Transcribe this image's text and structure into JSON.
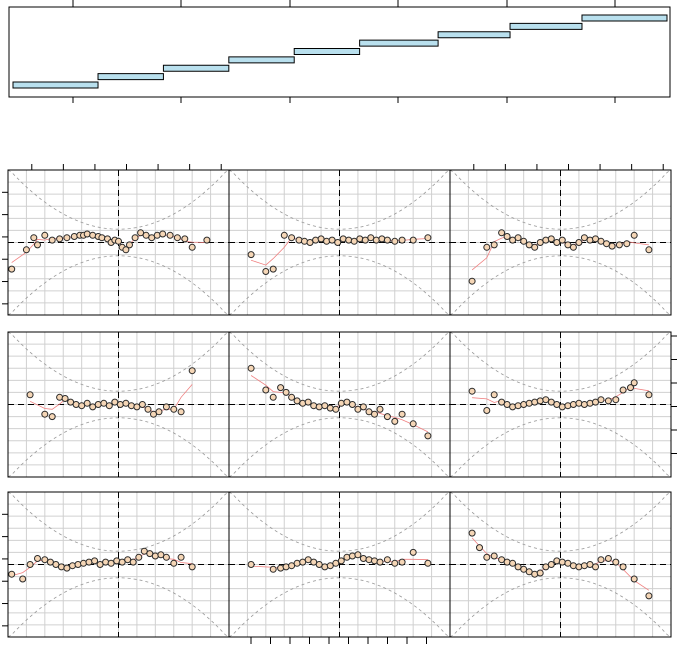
{
  "chart_data": {
    "type": "scatter",
    "layout": {
      "rows": 3,
      "cols": 3
    },
    "grid": true,
    "reference_lines": {
      "horizontal": 0,
      "vertical": 0,
      "style": "dashed"
    },
    "interval_strip": {
      "type": "bar",
      "intervals": [
        [
          0.0,
          0.13
        ],
        [
          0.13,
          0.23
        ],
        [
          0.23,
          0.33
        ],
        [
          0.33,
          0.43
        ],
        [
          0.43,
          0.53
        ],
        [
          0.53,
          0.65
        ],
        [
          0.65,
          0.76
        ],
        [
          0.76,
          0.87
        ],
        [
          0.87,
          1.0
        ]
      ]
    },
    "panels": [
      {
        "points": [
          [
            -2.9,
            -1.1
          ],
          [
            -2.5,
            -0.3
          ],
          [
            -2.3,
            0.2
          ],
          [
            -2.2,
            -0.1
          ],
          [
            -2.0,
            0.3
          ],
          [
            -1.8,
            0.1
          ],
          [
            -1.6,
            0.15
          ],
          [
            -1.4,
            0.2
          ],
          [
            -1.2,
            0.25
          ],
          [
            -1.05,
            0.3
          ],
          [
            -0.95,
            0.3
          ],
          [
            -0.85,
            0.35
          ],
          [
            -0.7,
            0.3
          ],
          [
            -0.55,
            0.25
          ],
          [
            -0.45,
            0.2
          ],
          [
            -0.3,
            0.15
          ],
          [
            -0.2,
            0.0
          ],
          [
            -0.1,
            0.1
          ],
          [
            0.0,
            0.05
          ],
          [
            0.1,
            -0.2
          ],
          [
            0.2,
            -0.3
          ],
          [
            0.3,
            -0.1
          ],
          [
            0.45,
            0.2
          ],
          [
            0.6,
            0.4
          ],
          [
            0.75,
            0.3
          ],
          [
            0.9,
            0.2
          ],
          [
            1.05,
            0.3
          ],
          [
            1.2,
            0.35
          ],
          [
            1.4,
            0.3
          ],
          [
            1.6,
            0.2
          ],
          [
            1.8,
            0.15
          ],
          [
            2.0,
            -0.2
          ],
          [
            2.4,
            0.1
          ]
        ]
      },
      {
        "points": [
          [
            -2.4,
            -0.5
          ],
          [
            -2.0,
            -1.2
          ],
          [
            -1.8,
            -1.1
          ],
          [
            -1.5,
            0.3
          ],
          [
            -1.3,
            0.2
          ],
          [
            -1.1,
            0.1
          ],
          [
            -0.95,
            0.05
          ],
          [
            -0.8,
            0.0
          ],
          [
            -0.65,
            0.1
          ],
          [
            -0.5,
            0.15
          ],
          [
            -0.35,
            0.05
          ],
          [
            -0.2,
            0.1
          ],
          [
            -0.05,
            0.0
          ],
          [
            0.1,
            0.15
          ],
          [
            0.25,
            0.1
          ],
          [
            0.4,
            0.05
          ],
          [
            0.55,
            0.15
          ],
          [
            0.7,
            0.1
          ],
          [
            0.85,
            0.2
          ],
          [
            1.0,
            0.1
          ],
          [
            1.15,
            0.15
          ],
          [
            1.3,
            0.1
          ],
          [
            1.5,
            0.05
          ],
          [
            1.7,
            0.1
          ],
          [
            2.0,
            0.1
          ],
          [
            2.4,
            0.2
          ]
        ]
      },
      {
        "points": [
          [
            -2.4,
            -1.6
          ],
          [
            -2.0,
            -0.2
          ],
          [
            -1.8,
            -0.1
          ],
          [
            -1.6,
            0.4
          ],
          [
            -1.45,
            0.25
          ],
          [
            -1.3,
            0.1
          ],
          [
            -1.15,
            0.2
          ],
          [
            -1.0,
            0.05
          ],
          [
            -0.85,
            -0.1
          ],
          [
            -0.7,
            -0.2
          ],
          [
            -0.55,
            0.0
          ],
          [
            -0.4,
            0.1
          ],
          [
            -0.25,
            0.15
          ],
          [
            -0.1,
            0.0
          ],
          [
            0.05,
            0.1
          ],
          [
            0.2,
            -0.1
          ],
          [
            0.35,
            -0.2
          ],
          [
            0.5,
            0.0
          ],
          [
            0.65,
            0.2
          ],
          [
            0.8,
            0.1
          ],
          [
            0.95,
            0.15
          ],
          [
            1.1,
            0.05
          ],
          [
            1.25,
            -0.05
          ],
          [
            1.4,
            -0.15
          ],
          [
            1.6,
            -0.1
          ],
          [
            1.8,
            -0.05
          ],
          [
            2.0,
            0.3
          ],
          [
            2.4,
            -0.3
          ]
        ]
      },
      {
        "points": [
          [
            -2.4,
            0.4
          ],
          [
            -2.0,
            -0.4
          ],
          [
            -1.8,
            -0.5
          ],
          [
            -1.6,
            0.3
          ],
          [
            -1.45,
            0.25
          ],
          [
            -1.3,
            0.1
          ],
          [
            -1.15,
            0.0
          ],
          [
            -1.0,
            -0.05
          ],
          [
            -0.85,
            0.05
          ],
          [
            -0.7,
            -0.1
          ],
          [
            -0.55,
            0.0
          ],
          [
            -0.4,
            0.05
          ],
          [
            -0.25,
            -0.05
          ],
          [
            -0.1,
            0.1
          ],
          [
            0.05,
            0.0
          ],
          [
            0.2,
            0.05
          ],
          [
            0.35,
            -0.05
          ],
          [
            0.5,
            -0.1
          ],
          [
            0.65,
            0.0
          ],
          [
            0.8,
            -0.2
          ],
          [
            0.95,
            -0.4
          ],
          [
            1.1,
            -0.3
          ],
          [
            1.3,
            -0.1
          ],
          [
            1.5,
            -0.2
          ],
          [
            1.7,
            -0.3
          ],
          [
            2.0,
            1.4
          ]
        ]
      },
      {
        "points": [
          [
            -2.4,
            1.5
          ],
          [
            -2.0,
            0.6
          ],
          [
            -1.8,
            0.3
          ],
          [
            -1.6,
            0.7
          ],
          [
            -1.45,
            0.5
          ],
          [
            -1.3,
            0.3
          ],
          [
            -1.15,
            0.15
          ],
          [
            -1.0,
            0.05
          ],
          [
            -0.85,
            0.1
          ],
          [
            -0.7,
            -0.05
          ],
          [
            -0.55,
            -0.1
          ],
          [
            -0.4,
            -0.05
          ],
          [
            -0.25,
            -0.15
          ],
          [
            -0.1,
            -0.2
          ],
          [
            0.05,
            0.05
          ],
          [
            0.2,
            0.1
          ],
          [
            0.35,
            0.0
          ],
          [
            0.5,
            -0.2
          ],
          [
            0.65,
            -0.1
          ],
          [
            0.8,
            -0.3
          ],
          [
            0.95,
            -0.4
          ],
          [
            1.1,
            -0.2
          ],
          [
            1.3,
            -0.5
          ],
          [
            1.5,
            -0.7
          ],
          [
            1.7,
            -0.4
          ],
          [
            2.0,
            -0.8
          ],
          [
            2.4,
            -1.3
          ]
        ]
      },
      {
        "points": [
          [
            -2.4,
            0.55
          ],
          [
            -2.0,
            -0.25
          ],
          [
            -1.8,
            0.4
          ],
          [
            -1.6,
            0.1
          ],
          [
            -1.45,
            0.0
          ],
          [
            -1.3,
            -0.1
          ],
          [
            -1.15,
            -0.05
          ],
          [
            -1.0,
            0.0
          ],
          [
            -0.85,
            0.05
          ],
          [
            -0.7,
            0.1
          ],
          [
            -0.55,
            0.15
          ],
          [
            -0.4,
            0.2
          ],
          [
            -0.25,
            0.1
          ],
          [
            -0.1,
            0.0
          ],
          [
            0.05,
            -0.1
          ],
          [
            0.2,
            -0.05
          ],
          [
            0.35,
            0.0
          ],
          [
            0.5,
            0.05
          ],
          [
            0.65,
            0.0
          ],
          [
            0.8,
            0.05
          ],
          [
            0.95,
            0.1
          ],
          [
            1.1,
            0.2
          ],
          [
            1.3,
            0.15
          ],
          [
            1.5,
            0.2
          ],
          [
            1.7,
            0.6
          ],
          [
            1.9,
            0.7
          ],
          [
            2.0,
            0.9
          ],
          [
            2.4,
            0.4
          ]
        ]
      },
      {
        "points": [
          [
            -2.9,
            -0.4
          ],
          [
            -2.6,
            -0.6
          ],
          [
            -2.4,
            0.0
          ],
          [
            -2.2,
            0.25
          ],
          [
            -2.0,
            0.2
          ],
          [
            -1.85,
            0.1
          ],
          [
            -1.7,
            0.0
          ],
          [
            -1.55,
            -0.1
          ],
          [
            -1.4,
            -0.15
          ],
          [
            -1.25,
            -0.05
          ],
          [
            -1.1,
            0.0
          ],
          [
            -0.95,
            0.05
          ],
          [
            -0.8,
            0.1
          ],
          [
            -0.65,
            0.15
          ],
          [
            -0.5,
            0.0
          ],
          [
            -0.35,
            0.1
          ],
          [
            -0.2,
            0.05
          ],
          [
            -0.05,
            0.15
          ],
          [
            0.1,
            0.1
          ],
          [
            0.25,
            0.2
          ],
          [
            0.4,
            0.1
          ],
          [
            0.55,
            0.3
          ],
          [
            0.7,
            0.55
          ],
          [
            0.85,
            0.45
          ],
          [
            1.0,
            0.35
          ],
          [
            1.15,
            0.4
          ],
          [
            1.3,
            0.3
          ],
          [
            1.5,
            0.05
          ],
          [
            1.7,
            0.3
          ],
          [
            2.0,
            -0.1
          ]
        ]
      },
      {
        "points": [
          [
            -2.4,
            0.0
          ],
          [
            -1.8,
            -0.2
          ],
          [
            -1.6,
            -0.15
          ],
          [
            -1.45,
            -0.1
          ],
          [
            -1.3,
            -0.05
          ],
          [
            -1.15,
            0.05
          ],
          [
            -1.0,
            0.1
          ],
          [
            -0.85,
            0.2
          ],
          [
            -0.7,
            0.1
          ],
          [
            -0.55,
            0.0
          ],
          [
            -0.4,
            -0.1
          ],
          [
            -0.25,
            -0.05
          ],
          [
            -0.1,
            0.05
          ],
          [
            0.05,
            0.15
          ],
          [
            0.2,
            0.3
          ],
          [
            0.35,
            0.35
          ],
          [
            0.5,
            0.4
          ],
          [
            0.65,
            0.25
          ],
          [
            0.8,
            0.2
          ],
          [
            0.95,
            0.15
          ],
          [
            1.1,
            0.1
          ],
          [
            1.3,
            0.2
          ],
          [
            1.5,
            0.05
          ],
          [
            1.7,
            0.1
          ],
          [
            2.0,
            0.5
          ],
          [
            2.4,
            0.05
          ]
        ]
      },
      {
        "points": [
          [
            -2.4,
            1.3
          ],
          [
            -2.2,
            0.7
          ],
          [
            -2.0,
            0.3
          ],
          [
            -1.8,
            0.35
          ],
          [
            -1.6,
            0.2
          ],
          [
            -1.45,
            0.1
          ],
          [
            -1.3,
            0.05
          ],
          [
            -1.15,
            -0.1
          ],
          [
            -1.0,
            -0.2
          ],
          [
            -0.85,
            -0.3
          ],
          [
            -0.7,
            -0.4
          ],
          [
            -0.55,
            -0.35
          ],
          [
            -0.4,
            -0.1
          ],
          [
            -0.25,
            0.0
          ],
          [
            -0.1,
            0.15
          ],
          [
            0.05,
            0.1
          ],
          [
            0.2,
            0.05
          ],
          [
            0.35,
            -0.05
          ],
          [
            0.5,
            -0.1
          ],
          [
            0.65,
            -0.05
          ],
          [
            0.8,
            0.0
          ],
          [
            0.95,
            -0.1
          ],
          [
            1.1,
            0.2
          ],
          [
            1.3,
            0.25
          ],
          [
            1.5,
            0.1
          ],
          [
            1.7,
            -0.1
          ],
          [
            2.0,
            -0.6
          ],
          [
            2.4,
            -1.3
          ]
        ]
      }
    ],
    "colors": {
      "strip_fill": "#b9e0ee",
      "point_fill": "#f5d6b6",
      "point_stroke": "#2a2a2a",
      "smooth_line": "#f08080",
      "grid": "#d0d0d0",
      "envelope": "#999999"
    }
  }
}
